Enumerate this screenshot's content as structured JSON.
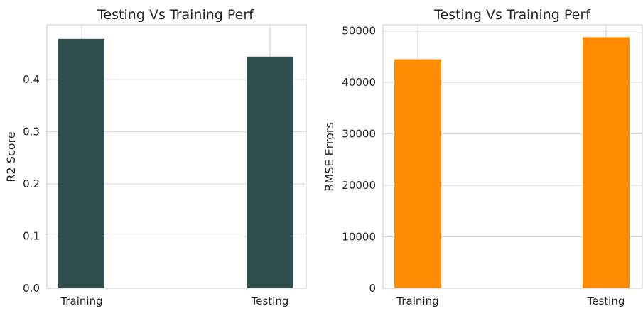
{
  "chart_data": [
    {
      "type": "bar",
      "title": "Testing Vs Training Perf",
      "xlabel": "",
      "ylabel": "R2 Score",
      "categories": [
        "Training",
        "Testing"
      ],
      "values": [
        0.478,
        0.444
      ],
      "ylim": [
        0,
        0.505
      ],
      "yticks": [
        "0.0",
        "0.1",
        "0.2",
        "0.3",
        "0.4"
      ],
      "bar_color": "#2f4f4f",
      "grid": true
    },
    {
      "type": "bar",
      "title": "Testing Vs Training Perf",
      "xlabel": "",
      "ylabel": "RMSE Errors",
      "categories": [
        "Training",
        "Testing"
      ],
      "values": [
        44500,
        48800
      ],
      "ylim": [
        0,
        51200
      ],
      "yticks": [
        "0",
        "10000",
        "20000",
        "30000",
        "40000",
        "50000"
      ],
      "bar_color": "#ff8c00",
      "grid": true
    }
  ]
}
